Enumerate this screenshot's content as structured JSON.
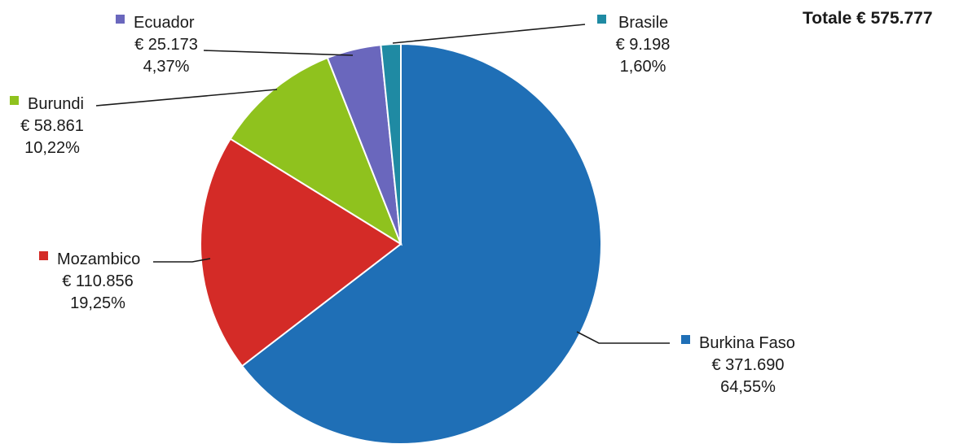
{
  "chart_data": {
    "type": "pie",
    "total_label": "Totale € 575.777",
    "slices": [
      {
        "name": "Burkina Faso",
        "value": 371690,
        "value_label": "€ 371.690",
        "percent": 64.55,
        "percent_label": "64,55%",
        "color": "#1f6fb6"
      },
      {
        "name": "Mozambico",
        "value": 110856,
        "value_label": "€ 110.856",
        "percent": 19.25,
        "percent_label": "19,25%",
        "color": "#d42b27"
      },
      {
        "name": "Burundi",
        "value": 58861,
        "value_label": "€ 58.861",
        "percent": 10.22,
        "percent_label": "10,22%",
        "color": "#8fc21e"
      },
      {
        "name": "Ecuador",
        "value": 25173,
        "value_label": "€ 25.173",
        "percent": 4.37,
        "percent_label": "4,37%",
        "color": "#6a67bd"
      },
      {
        "name": "Brasile",
        "value": 9198,
        "value_label": "€ 9.198",
        "percent": 1.6,
        "percent_label": "1,60%",
        "color": "#1f8aa3"
      }
    ],
    "legend": "callout labels with leader lines"
  }
}
